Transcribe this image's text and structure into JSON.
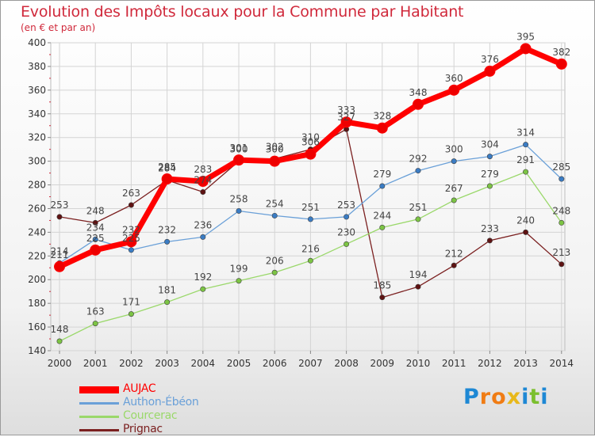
{
  "title": "Evolution des Impôts locaux pour la Commune par Habitant",
  "subtitle": "(en € et par an)",
  "brand": {
    "letters": [
      "P",
      "r",
      "o",
      "x",
      "i",
      "t",
      "i"
    ],
    "colors": [
      "#1e88d4",
      "#f07c14",
      "#f07c14",
      "#e8b81a",
      "#1e88d4",
      "#7bbf2e",
      "#1e88d4"
    ]
  },
  "chart_data": {
    "type": "line",
    "title": "Evolution des Impôts locaux pour la Commune par Habitant",
    "subtitle": "(en € et par an)",
    "xlabel": "",
    "ylabel": "",
    "x": [
      "2000",
      "2001",
      "2002",
      "2003",
      "2004",
      "2005",
      "2006",
      "2007",
      "2008",
      "2009",
      "2010",
      "2011",
      "2012",
      "2013",
      "2014"
    ],
    "ylim": [
      140,
      400
    ],
    "yticks": [
      140,
      160,
      180,
      200,
      220,
      240,
      260,
      280,
      300,
      320,
      340,
      360,
      380,
      400
    ],
    "grid": true,
    "legend_position": "bottom-left",
    "series": [
      {
        "name": "Prignac",
        "color": "#7b2020",
        "marker": "#5e1212",
        "values": [
          253,
          248,
          263,
          284,
          274,
          300,
          302,
          310,
          327,
          185,
          194,
          212,
          233,
          240,
          213
        ],
        "labels": [
          "253",
          "248",
          "263",
          "284",
          "274",
          "300",
          "302",
          "310",
          "327",
          "185",
          "194",
          "212",
          "233",
          "240",
          "213"
        ]
      },
      {
        "name": "Courcerac",
        "color": "#9ad86a",
        "marker": "#7cc444",
        "values": [
          148,
          163,
          171,
          181,
          192,
          199,
          206,
          216,
          230,
          244,
          251,
          267,
          279,
          291,
          248
        ],
        "labels": [
          "148",
          "163",
          "171",
          "181",
          "192",
          "199",
          "206",
          "216",
          "230",
          "244",
          "251",
          "267",
          "279",
          "291",
          "248"
        ]
      },
      {
        "name": "Authon-Ébéon",
        "color": "#6aa0d8",
        "marker": "#3a7cc4",
        "values": [
          214,
          234,
          225,
          232,
          236,
          258,
          254,
          251,
          253,
          279,
          292,
          300,
          304,
          314,
          285
        ],
        "labels": [
          "214",
          "234",
          "225",
          "232",
          "236",
          "258",
          "254",
          "251",
          "253",
          "279",
          "292",
          "300",
          "304",
          "314",
          "285"
        ]
      },
      {
        "name": "AUJAC",
        "color": "#ff0000",
        "marker": "#ee0000",
        "values": [
          211,
          225,
          232,
          285,
          283,
          301,
          300,
          306,
          333,
          328,
          348,
          360,
          376,
          395,
          382
        ],
        "labels": [
          "211",
          "225",
          "232",
          "285",
          "283",
          "301",
          "300",
          "306",
          "333",
          "328",
          "348",
          "360",
          "376",
          "395",
          "382"
        ]
      }
    ],
    "legend_order": [
      "AUJAC",
      "Authon-Ébéon",
      "Courcerac",
      "Prignac"
    ]
  },
  "legend": {
    "items": [
      {
        "label": "AUJAC",
        "color": "#ff0000",
        "key": "aujac"
      },
      {
        "label": "Authon-Ébéon",
        "color": "#6aa0d8",
        "key": "authon-ebeon"
      },
      {
        "label": "Courcerac",
        "color": "#9ad86a",
        "key": "courcerac"
      },
      {
        "label": "Prignac",
        "color": "#7b2020",
        "key": "prignac"
      }
    ]
  }
}
